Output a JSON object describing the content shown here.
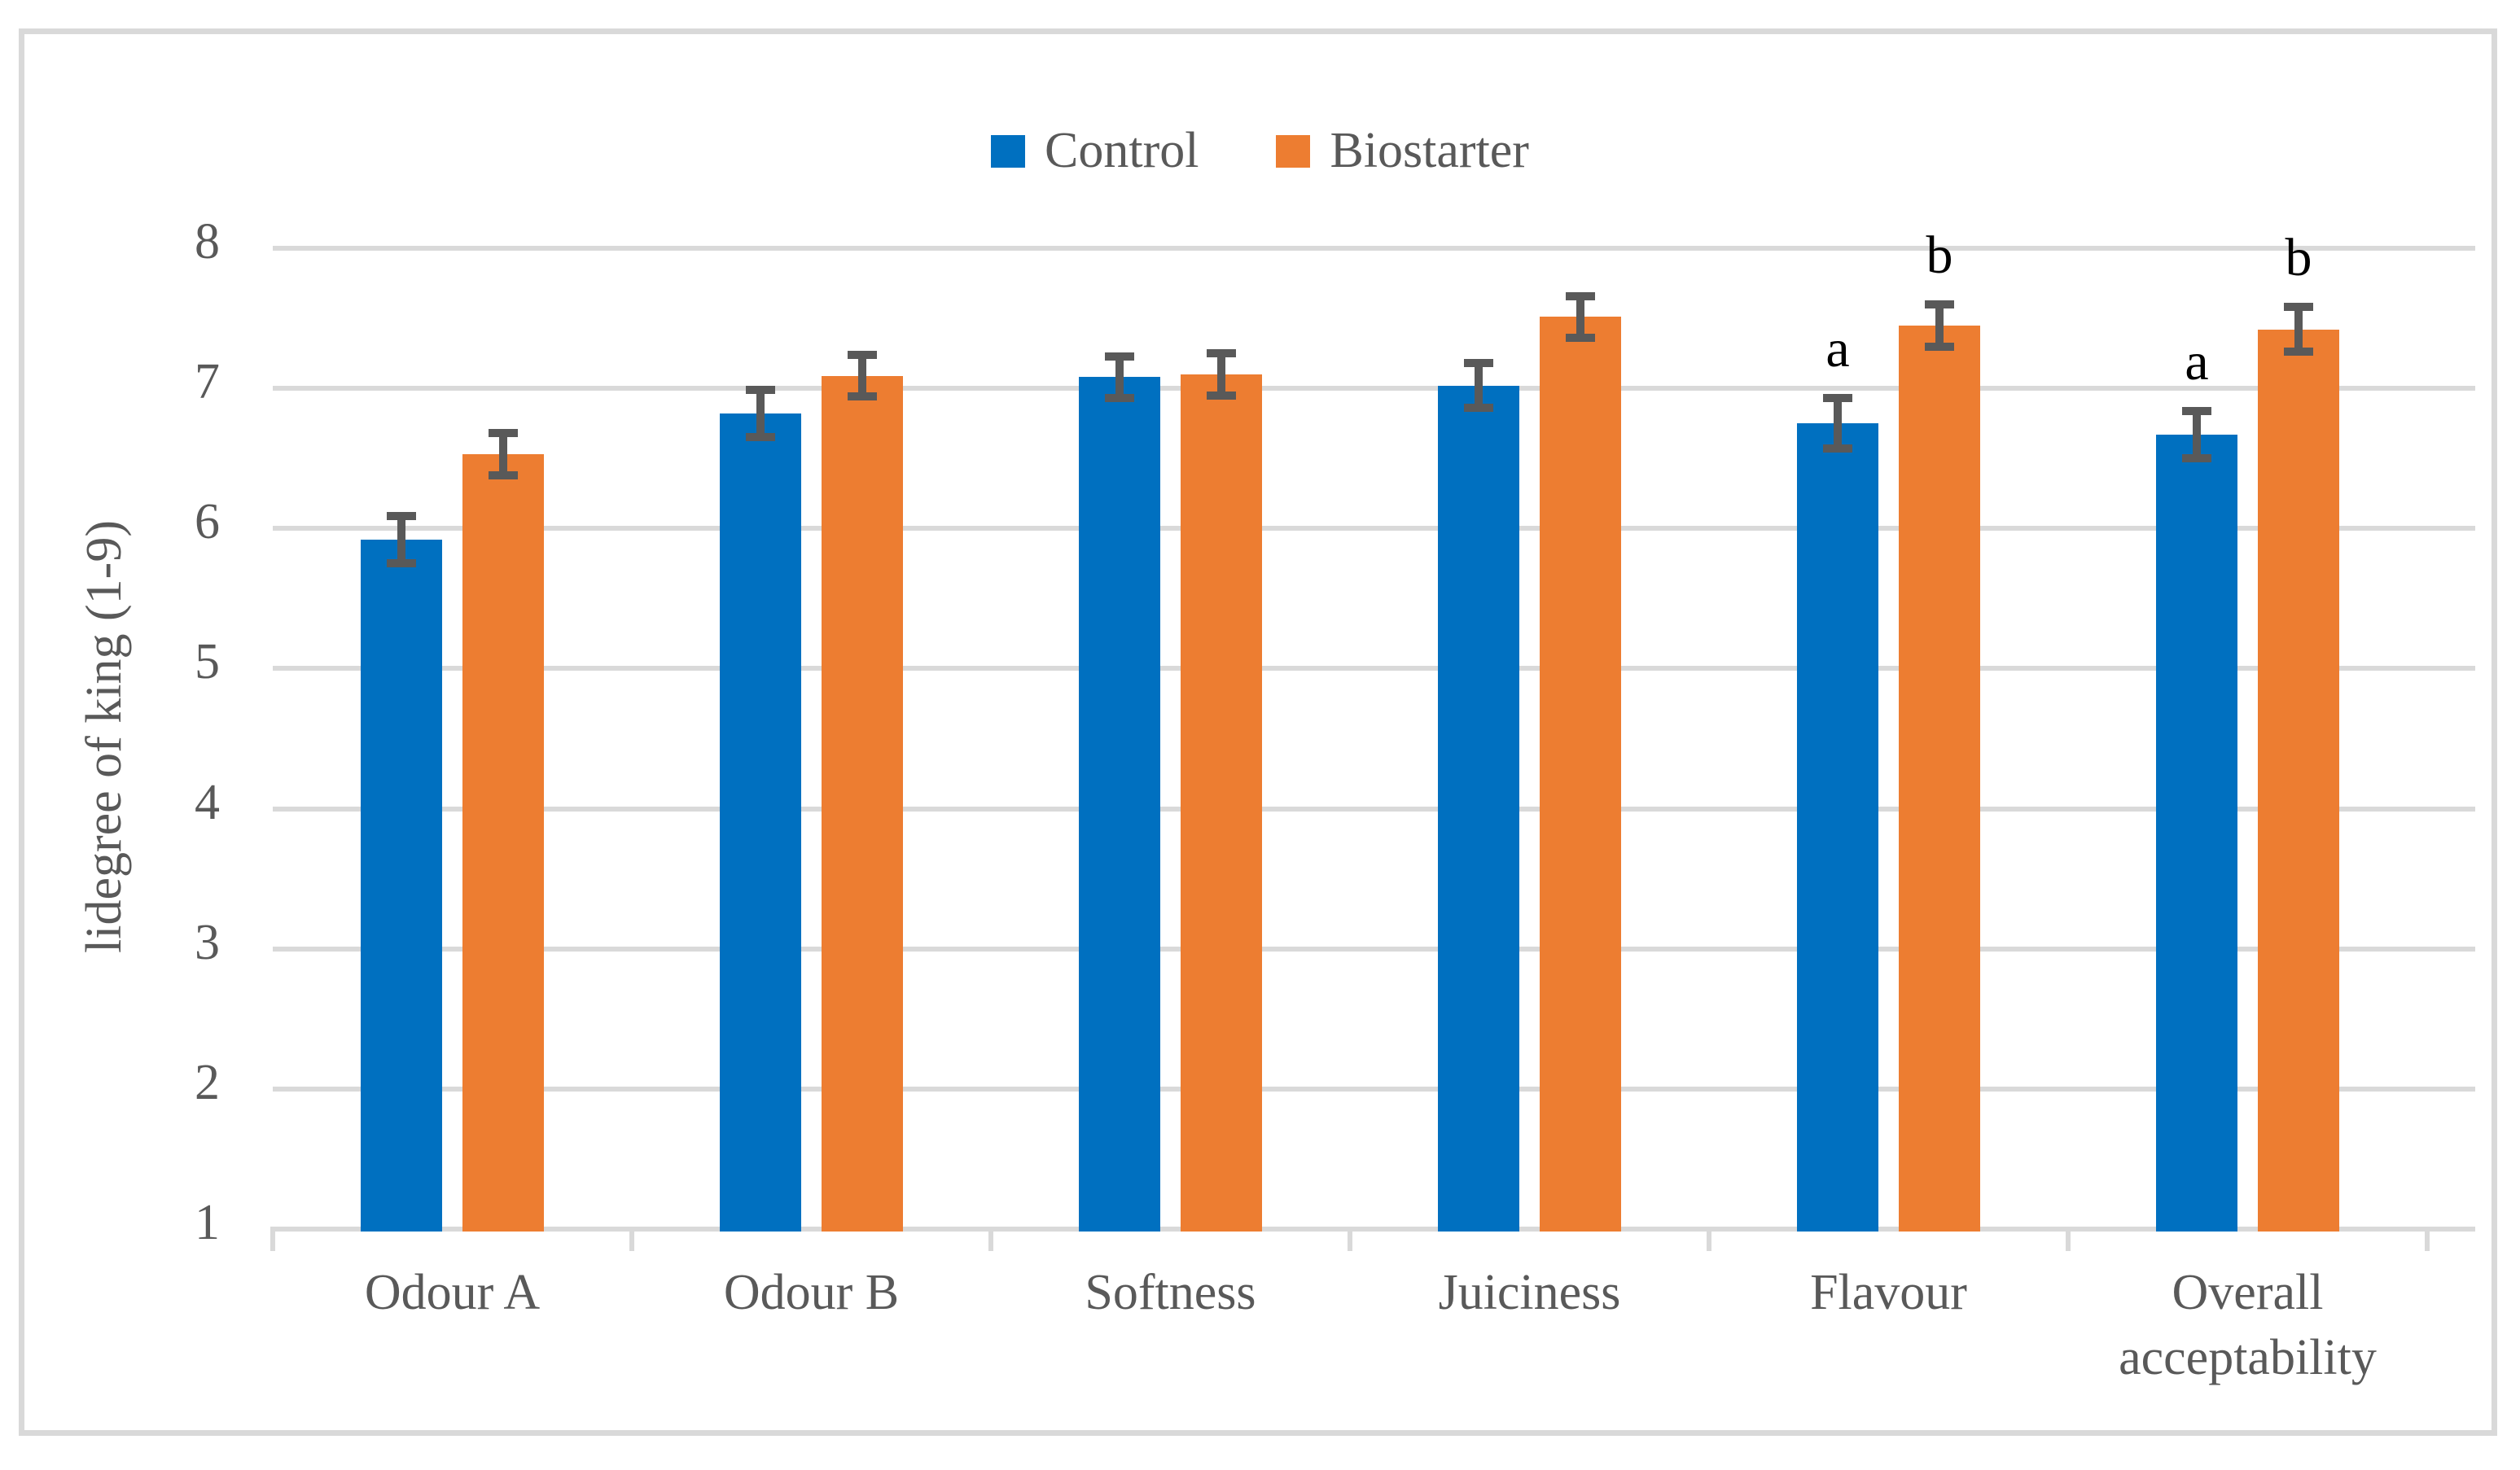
{
  "figure": {
    "background_color": "#FFFFFF",
    "border_color": "#D9D9D9"
  },
  "legend": {
    "items": [
      {
        "label": "Control",
        "color": "#0070C0"
      },
      {
        "label": "Biostarter",
        "color": "#ED7D31"
      }
    ]
  },
  "chart_data": {
    "type": "bar",
    "title": "",
    "xlabel": "",
    "ylabel": "lidegree of king (1-9)",
    "ylim": [
      1,
      8
    ],
    "yticks": [
      1,
      2,
      3,
      4,
      5,
      6,
      7,
      8
    ],
    "grid": true,
    "legend_position": "top-center",
    "categories": [
      "Odour A",
      "Odour B",
      "Softness",
      "Juiciness",
      "Flavour",
      "Overall acceptability"
    ],
    "series": [
      {
        "name": "Control",
        "color": "#0070C0",
        "values": [
          5.92,
          6.82,
          7.08,
          7.02,
          6.75,
          6.67
        ],
        "errors": [
          0.17,
          0.17,
          0.15,
          0.16,
          0.18,
          0.17
        ],
        "sig_letters": [
          "",
          "",
          "",
          "",
          "a",
          "a"
        ]
      },
      {
        "name": "Biostarter",
        "color": "#ED7D31",
        "values": [
          6.53,
          7.09,
          7.1,
          7.51,
          7.45,
          7.42
        ],
        "errors": [
          0.15,
          0.15,
          0.15,
          0.15,
          0.15,
          0.16
        ],
        "sig_letters": [
          "",
          "",
          "",
          "",
          "b",
          "b"
        ]
      }
    ],
    "gridline_color": "#D9D9D9",
    "error_bar_color": "#595959",
    "axis_text_color": "#595959",
    "sig_letter_color": "#000000"
  }
}
